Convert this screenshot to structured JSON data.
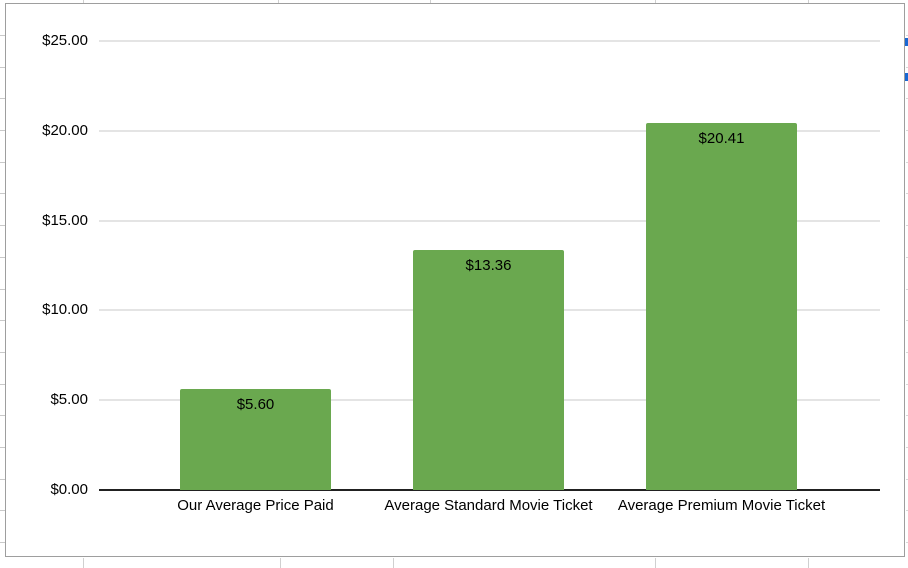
{
  "chart_data": {
    "type": "bar",
    "title": "",
    "categories": [
      "Our Average Price Paid",
      "Average Standard Movie Ticket",
      "Average Premium Movie Ticket"
    ],
    "values": [
      5.6,
      13.36,
      20.41
    ],
    "value_labels": [
      "$5.60",
      "$13.36",
      "$20.41"
    ],
    "xlabel": "",
    "ylabel": "",
    "ylim": [
      0,
      25
    ],
    "y_ticks": [
      {
        "value": 0,
        "label": "$0.00"
      },
      {
        "value": 5,
        "label": "$5.00"
      },
      {
        "value": 10,
        "label": "$10.00"
      },
      {
        "value": 15,
        "label": "$15.00"
      },
      {
        "value": 20,
        "label": "$20.00"
      },
      {
        "value": 25,
        "label": "$25.00"
      }
    ],
    "grid": true,
    "legend_position": "none"
  },
  "colors": {
    "bar": "#6aa84f",
    "gridline": "#e4e4e4",
    "axis_line": "#212121",
    "label_text": "#000000",
    "chart_border": "#9e9e9e",
    "sheet_gridline": "#d0d0d0",
    "selection_blue": "#1967d2"
  }
}
